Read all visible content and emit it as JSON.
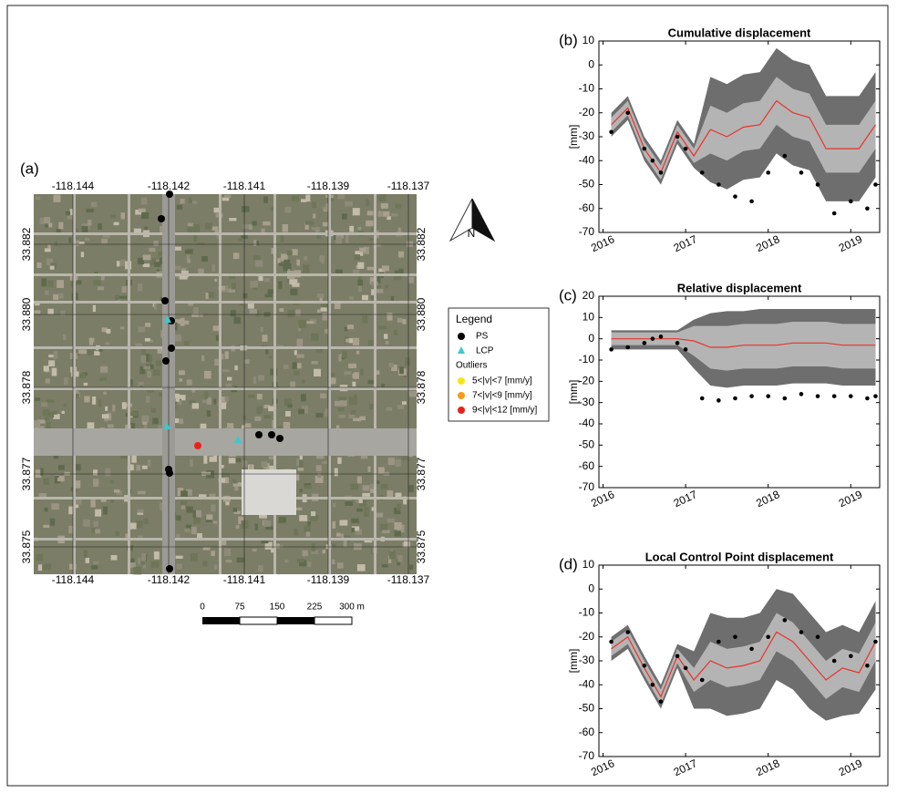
{
  "map": {
    "panel_label": "(a)",
    "top_ticks": [
      "-118.144",
      "-118.142",
      "-118.141",
      "-118.139",
      "-118.137"
    ],
    "bottom_ticks": [
      "-118.144",
      "-118.142",
      "-118.141",
      "-118.139",
      "-118.137"
    ],
    "left_ticks": [
      "33.882",
      "33.880",
      "33.878",
      "33.877",
      "33.875"
    ],
    "right_ticks": [
      "33.882",
      "33.880",
      "33.878",
      "33.877",
      "33.875"
    ],
    "north": "N",
    "legend": {
      "title": "Legend",
      "items": [
        "PS",
        "LCP"
      ],
      "subtitle": "Outliers",
      "outliers": [
        "5<|v|<7 [mm/y]",
        "7<|v|<9 [mm/y]",
        "9<|v|<12 [mm/y]"
      ]
    },
    "scale_bar": [
      "0",
      "75",
      "150",
      "225",
      "300 m"
    ]
  },
  "chart_data": [
    {
      "type": "line",
      "panel_label": "(b)",
      "title": "Cumulative displacement",
      "ylabel": "[mm]",
      "xlim": [
        2015.95,
        2019.35
      ],
      "xticks": [
        2016,
        2017,
        2018,
        2019
      ],
      "ylim": [
        -70,
        10
      ],
      "yticks": [
        10,
        0,
        -10,
        -20,
        -30,
        -40,
        -50,
        -60,
        -70
      ],
      "x": [
        2016.1,
        2016.3,
        2016.5,
        2016.7,
        2016.9,
        2017.1,
        2017.3,
        2017.5,
        2017.7,
        2017.9,
        2018.1,
        2018.3,
        2018.5,
        2018.7,
        2018.9,
        2019.1,
        2019.3
      ],
      "bands": [
        {
          "color": "#6e6e6e",
          "upper": [
            -20,
            -13,
            -30,
            -40,
            -23,
            -33,
            -5,
            -8,
            -4,
            -3,
            7,
            2,
            0,
            -13,
            -13,
            -13,
            -3
          ],
          "lower": [
            -30,
            -23,
            -40,
            -50,
            -33,
            -43,
            -49,
            -52,
            -48,
            -47,
            -37,
            -42,
            -44,
            -57,
            -57,
            -57,
            -47
          ]
        },
        {
          "color": "#b4b4b4",
          "upper": [
            -22,
            -15,
            -32,
            -42,
            -25,
            -35,
            -17,
            -20,
            -16,
            -15,
            -5,
            -10,
            -12,
            -25,
            -25,
            -25,
            -15
          ],
          "lower": [
            -28,
            -21,
            -38,
            -48,
            -31,
            -41,
            -37,
            -40,
            -36,
            -35,
            -25,
            -30,
            -32,
            -45,
            -45,
            -45,
            -35
          ]
        }
      ],
      "series": [
        {
          "color": "#e8332a",
          "values": [
            -25,
            -18,
            -35,
            -45,
            -28,
            -38,
            -27,
            -30,
            -26,
            -25,
            -15,
            -20,
            -22,
            -35,
            -35,
            -35,
            -25
          ]
        }
      ],
      "points": {
        "color": "#000000",
        "x": [
          2016.1,
          2016.3,
          2016.5,
          2016.6,
          2016.7,
          2016.9,
          2017.0,
          2017.2,
          2017.4,
          2017.6,
          2017.8,
          2018.0,
          2018.2,
          2018.4,
          2018.6,
          2018.8,
          2019.0,
          2019.2,
          2019.3
        ],
        "values": [
          -28,
          -20,
          -35,
          -40,
          -45,
          -30,
          -35,
          -45,
          -50,
          -55,
          -57,
          -45,
          -38,
          -45,
          -50,
          -62,
          -57,
          -60,
          -50
        ]
      }
    },
    {
      "type": "line",
      "panel_label": "(c)",
      "title": "Relative displacement",
      "ylabel": "[mm]",
      "xlim": [
        2015.95,
        2019.35
      ],
      "xticks": [
        2016,
        2017,
        2018,
        2019
      ],
      "ylim": [
        -70,
        20
      ],
      "yticks": [
        20,
        10,
        0,
        -10,
        -20,
        -30,
        -40,
        -50,
        -60,
        -70
      ],
      "x": [
        2016.1,
        2016.3,
        2016.5,
        2016.7,
        2016.9,
        2017.1,
        2017.3,
        2017.5,
        2017.7,
        2017.9,
        2018.1,
        2018.3,
        2018.5,
        2018.7,
        2018.9,
        2019.1,
        2019.3
      ],
      "bands": [
        {
          "color": "#6e6e6e",
          "upper": [
            4,
            4,
            4,
            4,
            4,
            9,
            12,
            13,
            13,
            14,
            14,
            14,
            14,
            14,
            14,
            14,
            14
          ],
          "lower": [
            -5,
            -5,
            -5,
            -5,
            -5,
            -14,
            -22,
            -23,
            -22,
            -22,
            -22,
            -21,
            -21,
            -21,
            -22,
            -22,
            -22
          ]
        },
        {
          "color": "#b4b4b4",
          "upper": [
            3,
            3,
            3,
            3,
            3,
            6,
            6,
            6,
            7,
            7,
            7,
            8,
            8,
            8,
            7,
            7,
            7
          ],
          "lower": [
            -3,
            -3,
            -3,
            -3,
            -3,
            -8,
            -14,
            -15,
            -14,
            -14,
            -14,
            -13,
            -13,
            -13,
            -14,
            -14,
            -14
          ]
        }
      ],
      "series": [
        {
          "color": "#e8332a",
          "values": [
            0,
            0,
            0,
            0,
            0,
            -1,
            -4,
            -4,
            -3,
            -3,
            -3,
            -2,
            -2,
            -2,
            -3,
            -3,
            -3
          ]
        }
      ],
      "points": {
        "color": "#000000",
        "x": [
          2016.1,
          2016.3,
          2016.5,
          2016.6,
          2016.7,
          2016.9,
          2017.0,
          2017.2,
          2017.4,
          2017.6,
          2017.8,
          2018.0,
          2018.2,
          2018.4,
          2018.6,
          2018.8,
          2019.0,
          2019.2,
          2019.3
        ],
        "values": [
          -5,
          -4,
          -2,
          0,
          1,
          -2,
          -5,
          -28,
          -29,
          -28,
          -27,
          -27,
          -28,
          -26,
          -27,
          -27,
          -27,
          -28,
          -27
        ]
      }
    },
    {
      "type": "line",
      "panel_label": "(d)",
      "title": "Local Control Point displacement",
      "ylabel": "[mm]",
      "xlim": [
        2015.95,
        2019.35
      ],
      "xticks": [
        2016,
        2017,
        2018,
        2019
      ],
      "ylim": [
        -70,
        10
      ],
      "yticks": [
        10,
        0,
        -10,
        -20,
        -30,
        -40,
        -50,
        -60,
        -70
      ],
      "x": [
        2016.1,
        2016.3,
        2016.5,
        2016.7,
        2016.9,
        2017.1,
        2017.3,
        2017.5,
        2017.7,
        2017.9,
        2018.1,
        2018.3,
        2018.5,
        2018.7,
        2018.9,
        2019.1,
        2019.3
      ],
      "bands": [
        {
          "color": "#6e6e6e",
          "upper": [
            -20,
            -15,
            -28,
            -40,
            -23,
            -26,
            -10,
            -12,
            -12,
            -10,
            0,
            -2,
            -10,
            -18,
            -15,
            -18,
            -5
          ],
          "lower": [
            -30,
            -25,
            -38,
            -50,
            -33,
            -50,
            -50,
            -53,
            -52,
            -50,
            -38,
            -42,
            -50,
            -55,
            -53,
            -52,
            -42
          ]
        },
        {
          "color": "#b4b4b4",
          "upper": [
            -22,
            -17,
            -30,
            -42,
            -25,
            -33,
            -22,
            -25,
            -24,
            -22,
            -10,
            -14,
            -22,
            -30,
            -25,
            -27,
            -14
          ],
          "lower": [
            -28,
            -23,
            -36,
            -48,
            -31,
            -43,
            -38,
            -41,
            -40,
            -38,
            -26,
            -30,
            -38,
            -46,
            -41,
            -43,
            -30
          ]
        }
      ],
      "series": [
        {
          "color": "#e8332a",
          "values": [
            -25,
            -20,
            -33,
            -45,
            -28,
            -38,
            -30,
            -33,
            -32,
            -30,
            -18,
            -22,
            -30,
            -38,
            -33,
            -35,
            -22
          ]
        }
      ],
      "points": {
        "color": "#000000",
        "x": [
          2016.1,
          2016.3,
          2016.5,
          2016.6,
          2016.7,
          2016.9,
          2017.0,
          2017.2,
          2017.4,
          2017.6,
          2017.8,
          2018.0,
          2018.2,
          2018.4,
          2018.6,
          2018.8,
          2019.0,
          2019.2,
          2019.3
        ],
        "values": [
          -22,
          -18,
          -32,
          -40,
          -47,
          -28,
          -33,
          -38,
          -22,
          -20,
          -25,
          -20,
          -13,
          -18,
          -20,
          -30,
          -28,
          -32,
          -22
        ]
      }
    }
  ]
}
